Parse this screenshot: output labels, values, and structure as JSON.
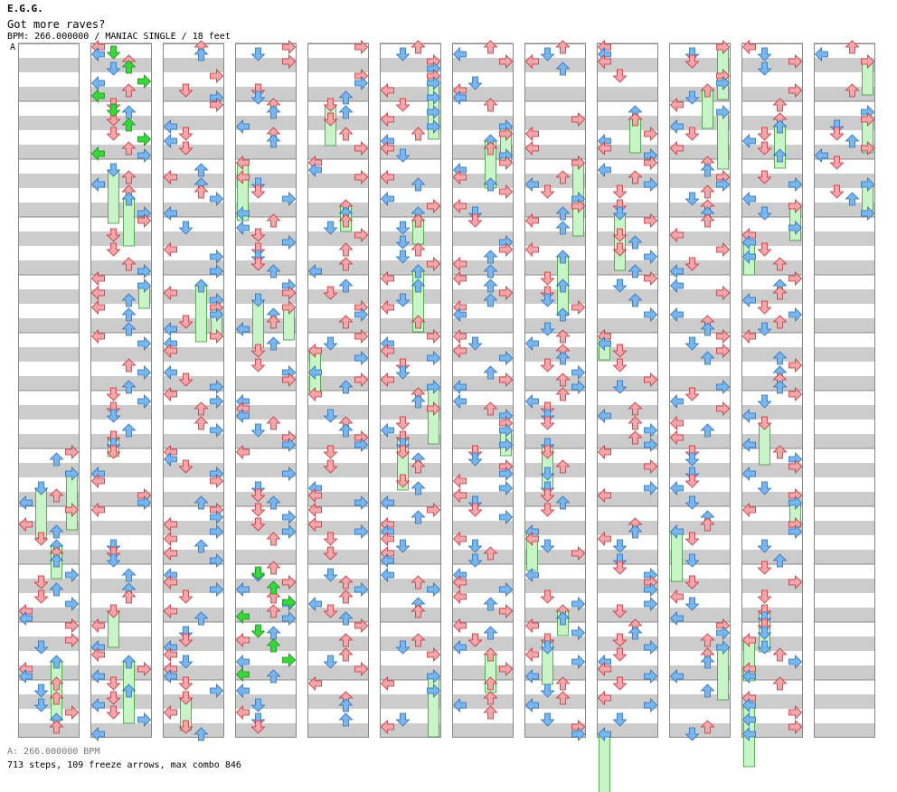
{
  "song": {
    "title": "E.G.G.",
    "subtitle": "Got more raves?",
    "meta": "BPM: 266.000000 / MANIAC SINGLE / 18 feet"
  },
  "bpm_marker": "A",
  "footer": {
    "bpm_line": "A: 266.000000 BPM",
    "stats_line": "713 steps, 109 freeze arrows, max combo 846"
  },
  "chart_data": {
    "type": "step-chart",
    "bpm": 266.0,
    "difficulty": "MANIAC",
    "style": "SINGLE",
    "feet": 18,
    "steps": 713,
    "freeze_arrows": 109,
    "max_combo": 846,
    "columns": 12,
    "measures_per_column": 12,
    "arrow_colors": {
      "quarter": "#f4a6a8",
      "eighth": "#7ab6ee",
      "special": "#39d83a"
    },
    "freeze_color": "#c8f4c8",
    "notes_seed": 20240611
  }
}
